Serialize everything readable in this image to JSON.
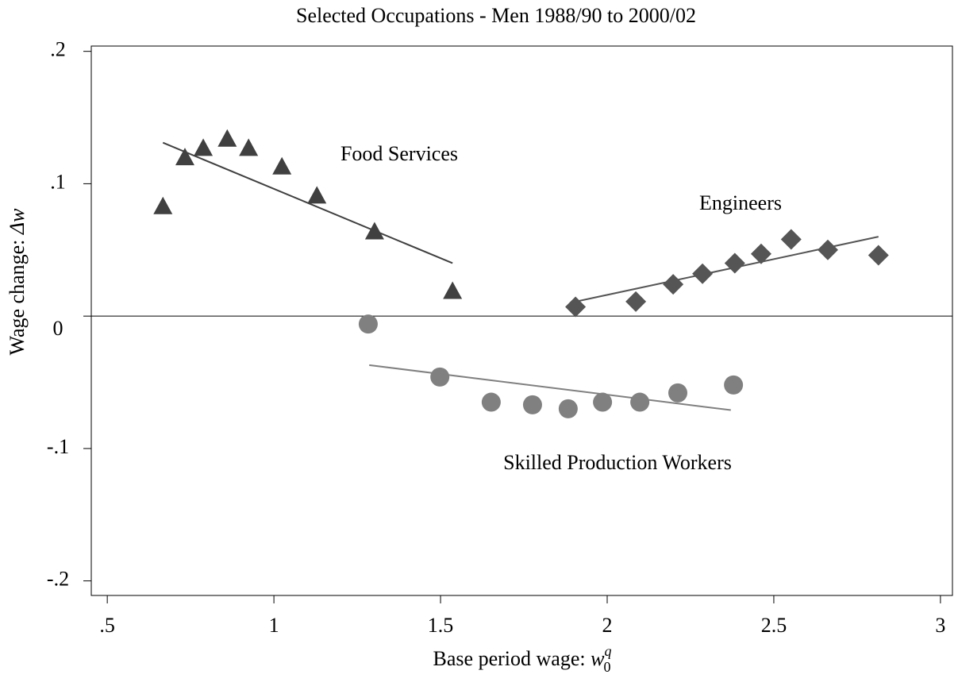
{
  "chart_data": {
    "type": "scatter",
    "title": "Selected Occupations - Men 1988/90 to 2000/02",
    "xlabel": {
      "text": "Base period wage: ",
      "var": "w",
      "sub": "0",
      "sup": "q"
    },
    "ylabel": {
      "text": "Wage change: ",
      "var": "Δw"
    },
    "xlim": [
      0.452,
      3.036
    ],
    "ylim": [
      -0.211,
      0.204
    ],
    "xticks": [
      {
        "value": 0.5,
        "label": ".5"
      },
      1,
      1.5,
      2,
      2.5,
      3
    ],
    "yticks": [
      {
        "value": -0.2,
        "label": "-.2"
      },
      {
        "value": -0.1,
        "label": "-.1"
      },
      0,
      {
        "value": 0.1,
        "label": ".1"
      },
      {
        "value": 0.2,
        "label": ".2"
      }
    ],
    "reference_line": 0,
    "series": [
      {
        "name": "Food Services",
        "color": "#404040",
        "marker": "triangle",
        "x": [
          0.667,
          0.733,
          0.788,
          0.86,
          0.924,
          1.024,
          1.129,
          1.302,
          1.536
        ],
        "values": [
          0.083,
          0.12,
          0.127,
          0.134,
          0.127,
          0.113,
          0.091,
          0.064,
          0.019
        ],
        "fit": {
          "x": [
            0.667,
            1.536
          ],
          "values": [
            0.131,
            0.04
          ]
        }
      },
      {
        "name": "Engineers",
        "color": "#555555",
        "marker": "diamond",
        "x": [
          1.905,
          2.086,
          2.198,
          2.286,
          2.383,
          2.462,
          2.552,
          2.662,
          2.814
        ],
        "values": [
          0.007,
          0.011,
          0.024,
          0.032,
          0.04,
          0.047,
          0.058,
          0.05,
          0.046
        ],
        "fit": {
          "x": [
            1.888,
            2.814
          ],
          "values": [
            0.01,
            0.06
          ]
        }
      },
      {
        "name": "Skilled Production Workers",
        "color": "#808080",
        "marker": "circle",
        "x": [
          1.283,
          1.498,
          1.652,
          1.776,
          1.883,
          1.986,
          2.098,
          2.212,
          2.379
        ],
        "values": [
          -0.006,
          -0.046,
          -0.065,
          -0.067,
          -0.07,
          -0.065,
          -0.065,
          -0.058,
          -0.052
        ],
        "fit": {
          "x": [
            1.286,
            2.371
          ],
          "values": [
            -0.037,
            -0.071
          ]
        }
      }
    ]
  }
}
